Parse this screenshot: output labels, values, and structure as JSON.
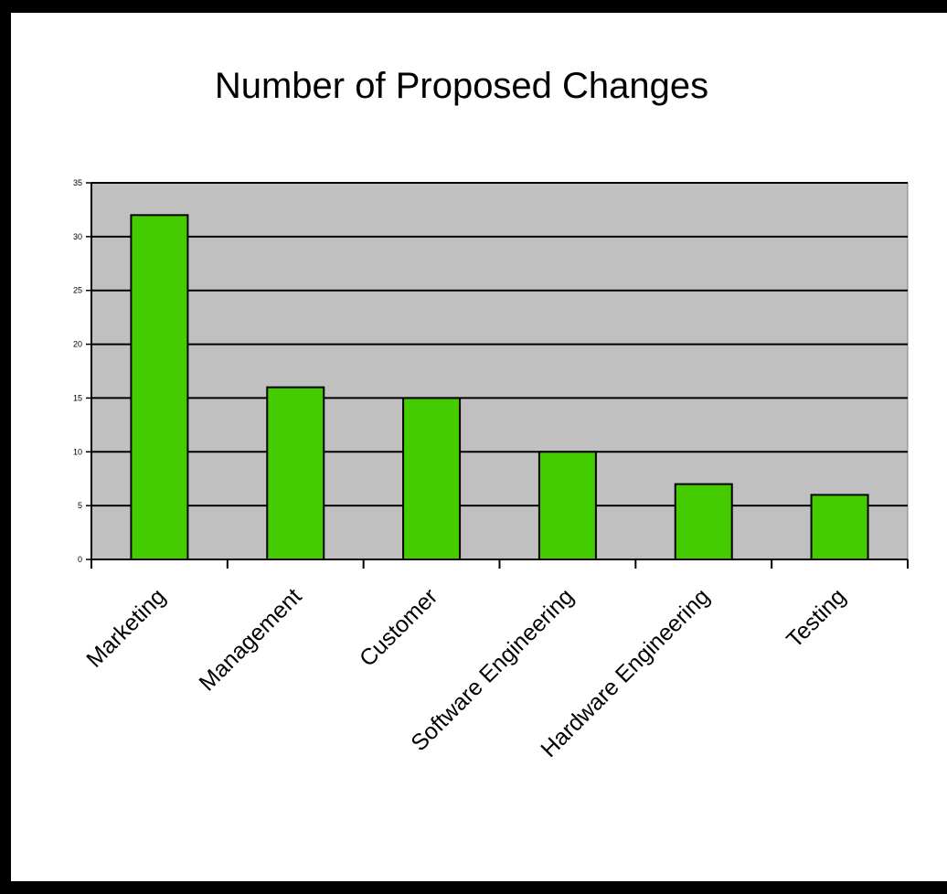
{
  "chart_data": {
    "type": "bar",
    "title": "Number of Proposed Changes",
    "xlabel": "",
    "ylabel": "",
    "categories": [
      "Marketing",
      "Management",
      "Customer",
      "Software Engineering",
      "Hardware Engineering",
      "Testing"
    ],
    "values": [
      32,
      16,
      15,
      10,
      7,
      6
    ],
    "ylim": [
      0,
      35
    ],
    "yticks": [
      0,
      5,
      10,
      15,
      20,
      25,
      30,
      35
    ],
    "grid": true,
    "legend": "none",
    "colors": {
      "bar_fill": "#44cc00",
      "bar_stroke": "#000000",
      "plot_background": "#c0c0c0",
      "gridline": "#000000"
    }
  }
}
